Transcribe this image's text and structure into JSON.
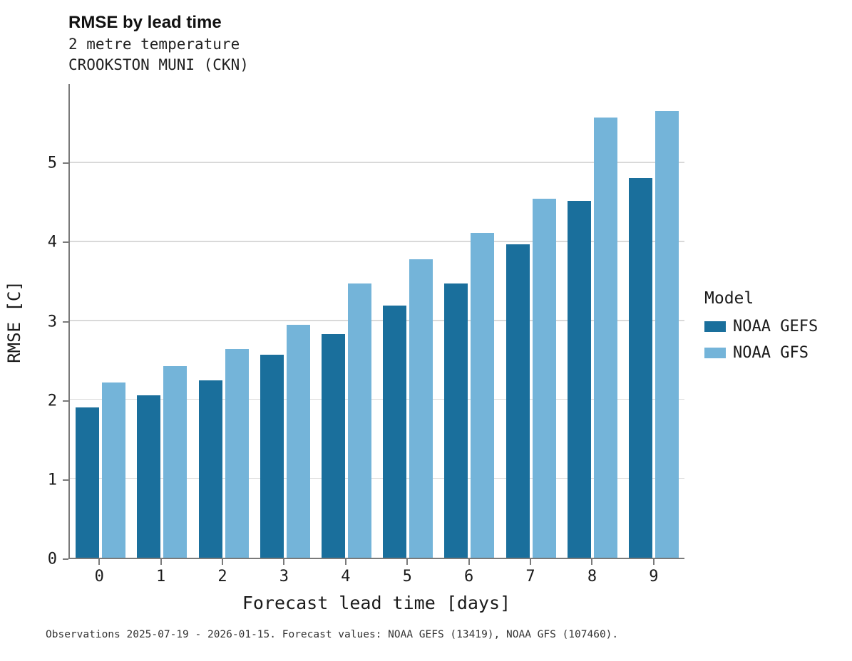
{
  "header": {
    "title": "RMSE by lead time",
    "subtitle1": "2 metre temperature",
    "subtitle2": "CROOKSTON MUNI (CKN)"
  },
  "legend": {
    "title": "Model",
    "entries": [
      {
        "label": "NOAA GEFS",
        "color": "#1a6f9c"
      },
      {
        "label": "NOAA GFS",
        "color": "#74b4d9"
      }
    ]
  },
  "footer": {
    "caption": "Observations 2025-07-19 - 2026-01-15. Forecast values: NOAA GEFS (13419), NOAA GFS (107460)."
  },
  "chart_data": {
    "type": "bar",
    "title": "RMSE by lead time",
    "subtitle": "2 metre temperature — CROOKSTON MUNI (CKN)",
    "xlabel": "Forecast lead time [days]",
    "ylabel": "RMSE [C]",
    "categories": [
      "0",
      "1",
      "2",
      "3",
      "4",
      "5",
      "6",
      "7",
      "8",
      "9"
    ],
    "series": [
      {
        "name": "NOAA GEFS",
        "color": "#1a6f9c",
        "values": [
          1.9,
          2.06,
          2.25,
          2.57,
          2.83,
          3.19,
          3.47,
          3.97,
          4.52,
          4.81
        ]
      },
      {
        "name": "NOAA GFS",
        "color": "#74b4d9",
        "values": [
          2.22,
          2.43,
          2.64,
          2.95,
          3.47,
          3.78,
          4.11,
          4.55,
          5.58,
          5.66
        ]
      }
    ],
    "ylim": [
      0,
      6
    ],
    "yticks": [
      0,
      1,
      2,
      3,
      4,
      5
    ],
    "grid": true,
    "legend_position": "right"
  }
}
